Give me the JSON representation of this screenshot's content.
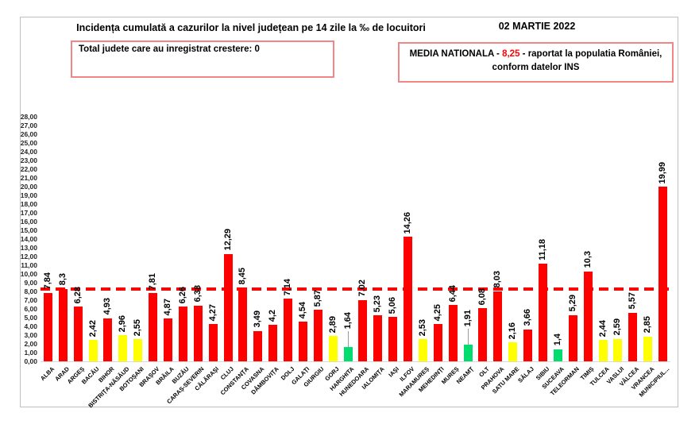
{
  "header": {
    "title": "Incidența cumulată a cazurilor la nivel județean pe 14 zile la ‰ de locuitori",
    "date": "02 MARTIE 2022",
    "growth_box": "Total judete care au inregistrat crestere: 0",
    "national_average_box": {
      "prefix": "MEDIA NATIONALA - ",
      "value": "8,25",
      "suffix": " -  raportat la populatia României,",
      "line2": "conform datelor INS"
    }
  },
  "chart_data": {
    "type": "bar",
    "title": "Incidența cumulată a cazurilor la nivel județean pe 14 zile la ‰ de locuitori",
    "xlabel": "",
    "ylabel": "",
    "ylim": [
      0,
      28
    ],
    "ytick_step": 1,
    "ytick_format": "0,00",
    "grid": false,
    "legend": false,
    "reference_line": {
      "name": "MEDIA NATIONALA",
      "value": 8.25,
      "display": "8,25",
      "color": "#ff0000",
      "style": "dashed"
    },
    "palette": {
      "red": "#ff0000",
      "yellow": "#ffff00",
      "green": "#00dc6e"
    },
    "bars": [
      {
        "name": "ALBA",
        "value": 7.84,
        "label": "7,84",
        "color": "red"
      },
      {
        "name": "ARAD",
        "value": 8.3,
        "label": "8,3",
        "color": "red"
      },
      {
        "name": "ARGEȘ",
        "value": 6.28,
        "label": "6,28",
        "color": "red"
      },
      {
        "name": "BACĂU",
        "value": 2.42,
        "label": "2,42",
        "color": "yellow"
      },
      {
        "name": "BIHOR",
        "value": 4.93,
        "label": "4,93",
        "color": "red"
      },
      {
        "name": "BISTRIȚA-NĂSĂUD",
        "value": 2.96,
        "label": "2,96",
        "color": "yellow"
      },
      {
        "name": "BOTOȘANI",
        "value": 2.55,
        "label": "2,55",
        "color": "yellow"
      },
      {
        "name": "BRAȘOV",
        "value": 7.81,
        "label": "7,81",
        "color": "red"
      },
      {
        "name": "BRĂILA",
        "value": 4.87,
        "label": "4,87",
        "color": "red"
      },
      {
        "name": "BUZĂU",
        "value": 6.26,
        "label": "6,26",
        "color": "red"
      },
      {
        "name": "CARAȘ-SEVERIN",
        "value": 6.38,
        "label": "6,38",
        "color": "red"
      },
      {
        "name": "CĂLĂRAȘI",
        "value": 4.27,
        "label": "4,27",
        "color": "red"
      },
      {
        "name": "CLUJ",
        "value": 12.29,
        "label": "12,29",
        "color": "red"
      },
      {
        "name": "CONSTANȚA",
        "value": 8.45,
        "label": "8,45",
        "color": "red"
      },
      {
        "name": "COVASNA",
        "value": 3.49,
        "label": "3,49",
        "color": "red"
      },
      {
        "name": "DÂMBOVIȚA",
        "value": 4.2,
        "label": "4,2",
        "color": "red"
      },
      {
        "name": "DOLJ",
        "value": 7.14,
        "label": "7,14",
        "color": "red"
      },
      {
        "name": "GALAȚI",
        "value": 4.54,
        "label": "4,54",
        "color": "red"
      },
      {
        "name": "GIURGIU",
        "value": 5.87,
        "label": "5,87",
        "color": "red"
      },
      {
        "name": "GORJ",
        "value": 2.89,
        "label": "2,89",
        "color": "yellow"
      },
      {
        "name": "HARGHITA",
        "value": 1.64,
        "label": "1,64",
        "color": "green",
        "leader": true
      },
      {
        "name": "HUNEDOARA",
        "value": 7.02,
        "label": "7,02",
        "color": "red"
      },
      {
        "name": "IALOMIȚA",
        "value": 5.23,
        "label": "5,23",
        "color": "red"
      },
      {
        "name": "IAȘI",
        "value": 5.06,
        "label": "5,06",
        "color": "red"
      },
      {
        "name": "ILFOV",
        "value": 14.26,
        "label": "14,26",
        "color": "red"
      },
      {
        "name": "MARAMUREȘ",
        "value": 2.53,
        "label": "2,53",
        "color": "yellow"
      },
      {
        "name": "MEHEDINȚI",
        "value": 4.25,
        "label": "4,25",
        "color": "red"
      },
      {
        "name": "MUREȘ",
        "value": 6.44,
        "label": "6,44",
        "color": "red"
      },
      {
        "name": "NEAMȚ",
        "value": 1.91,
        "label": "1,91",
        "color": "green",
        "leader": true
      },
      {
        "name": "OLT",
        "value": 6.08,
        "label": "6,08",
        "color": "red"
      },
      {
        "name": "PRAHOVA",
        "value": 8.03,
        "label": "8,03",
        "color": "red"
      },
      {
        "name": "SATU MARE",
        "value": 2.16,
        "label": "2,16",
        "color": "yellow"
      },
      {
        "name": "SĂLAJ",
        "value": 3.66,
        "label": "3,66",
        "color": "red"
      },
      {
        "name": "SIBIU",
        "value": 11.18,
        "label": "11,18",
        "color": "red"
      },
      {
        "name": "SUCEAVA",
        "value": 1.4,
        "label": "1,4",
        "color": "green"
      },
      {
        "name": "TELEORMAN",
        "value": 5.29,
        "label": "5,29",
        "color": "red"
      },
      {
        "name": "TIMIȘ",
        "value": 10.3,
        "label": "10,3",
        "color": "red"
      },
      {
        "name": "TULCEA",
        "value": 2.44,
        "label": "2,44",
        "color": "yellow"
      },
      {
        "name": "VASLUI",
        "value": 2.59,
        "label": "2,59",
        "color": "yellow"
      },
      {
        "name": "VÂLCEA",
        "value": 5.57,
        "label": "5,57",
        "color": "red"
      },
      {
        "name": "VRANCEA",
        "value": 2.85,
        "label": "2,85",
        "color": "yellow"
      },
      {
        "name": "MUNICIPIUL...",
        "value": 19.99,
        "label": "19,99",
        "color": "red"
      }
    ]
  }
}
